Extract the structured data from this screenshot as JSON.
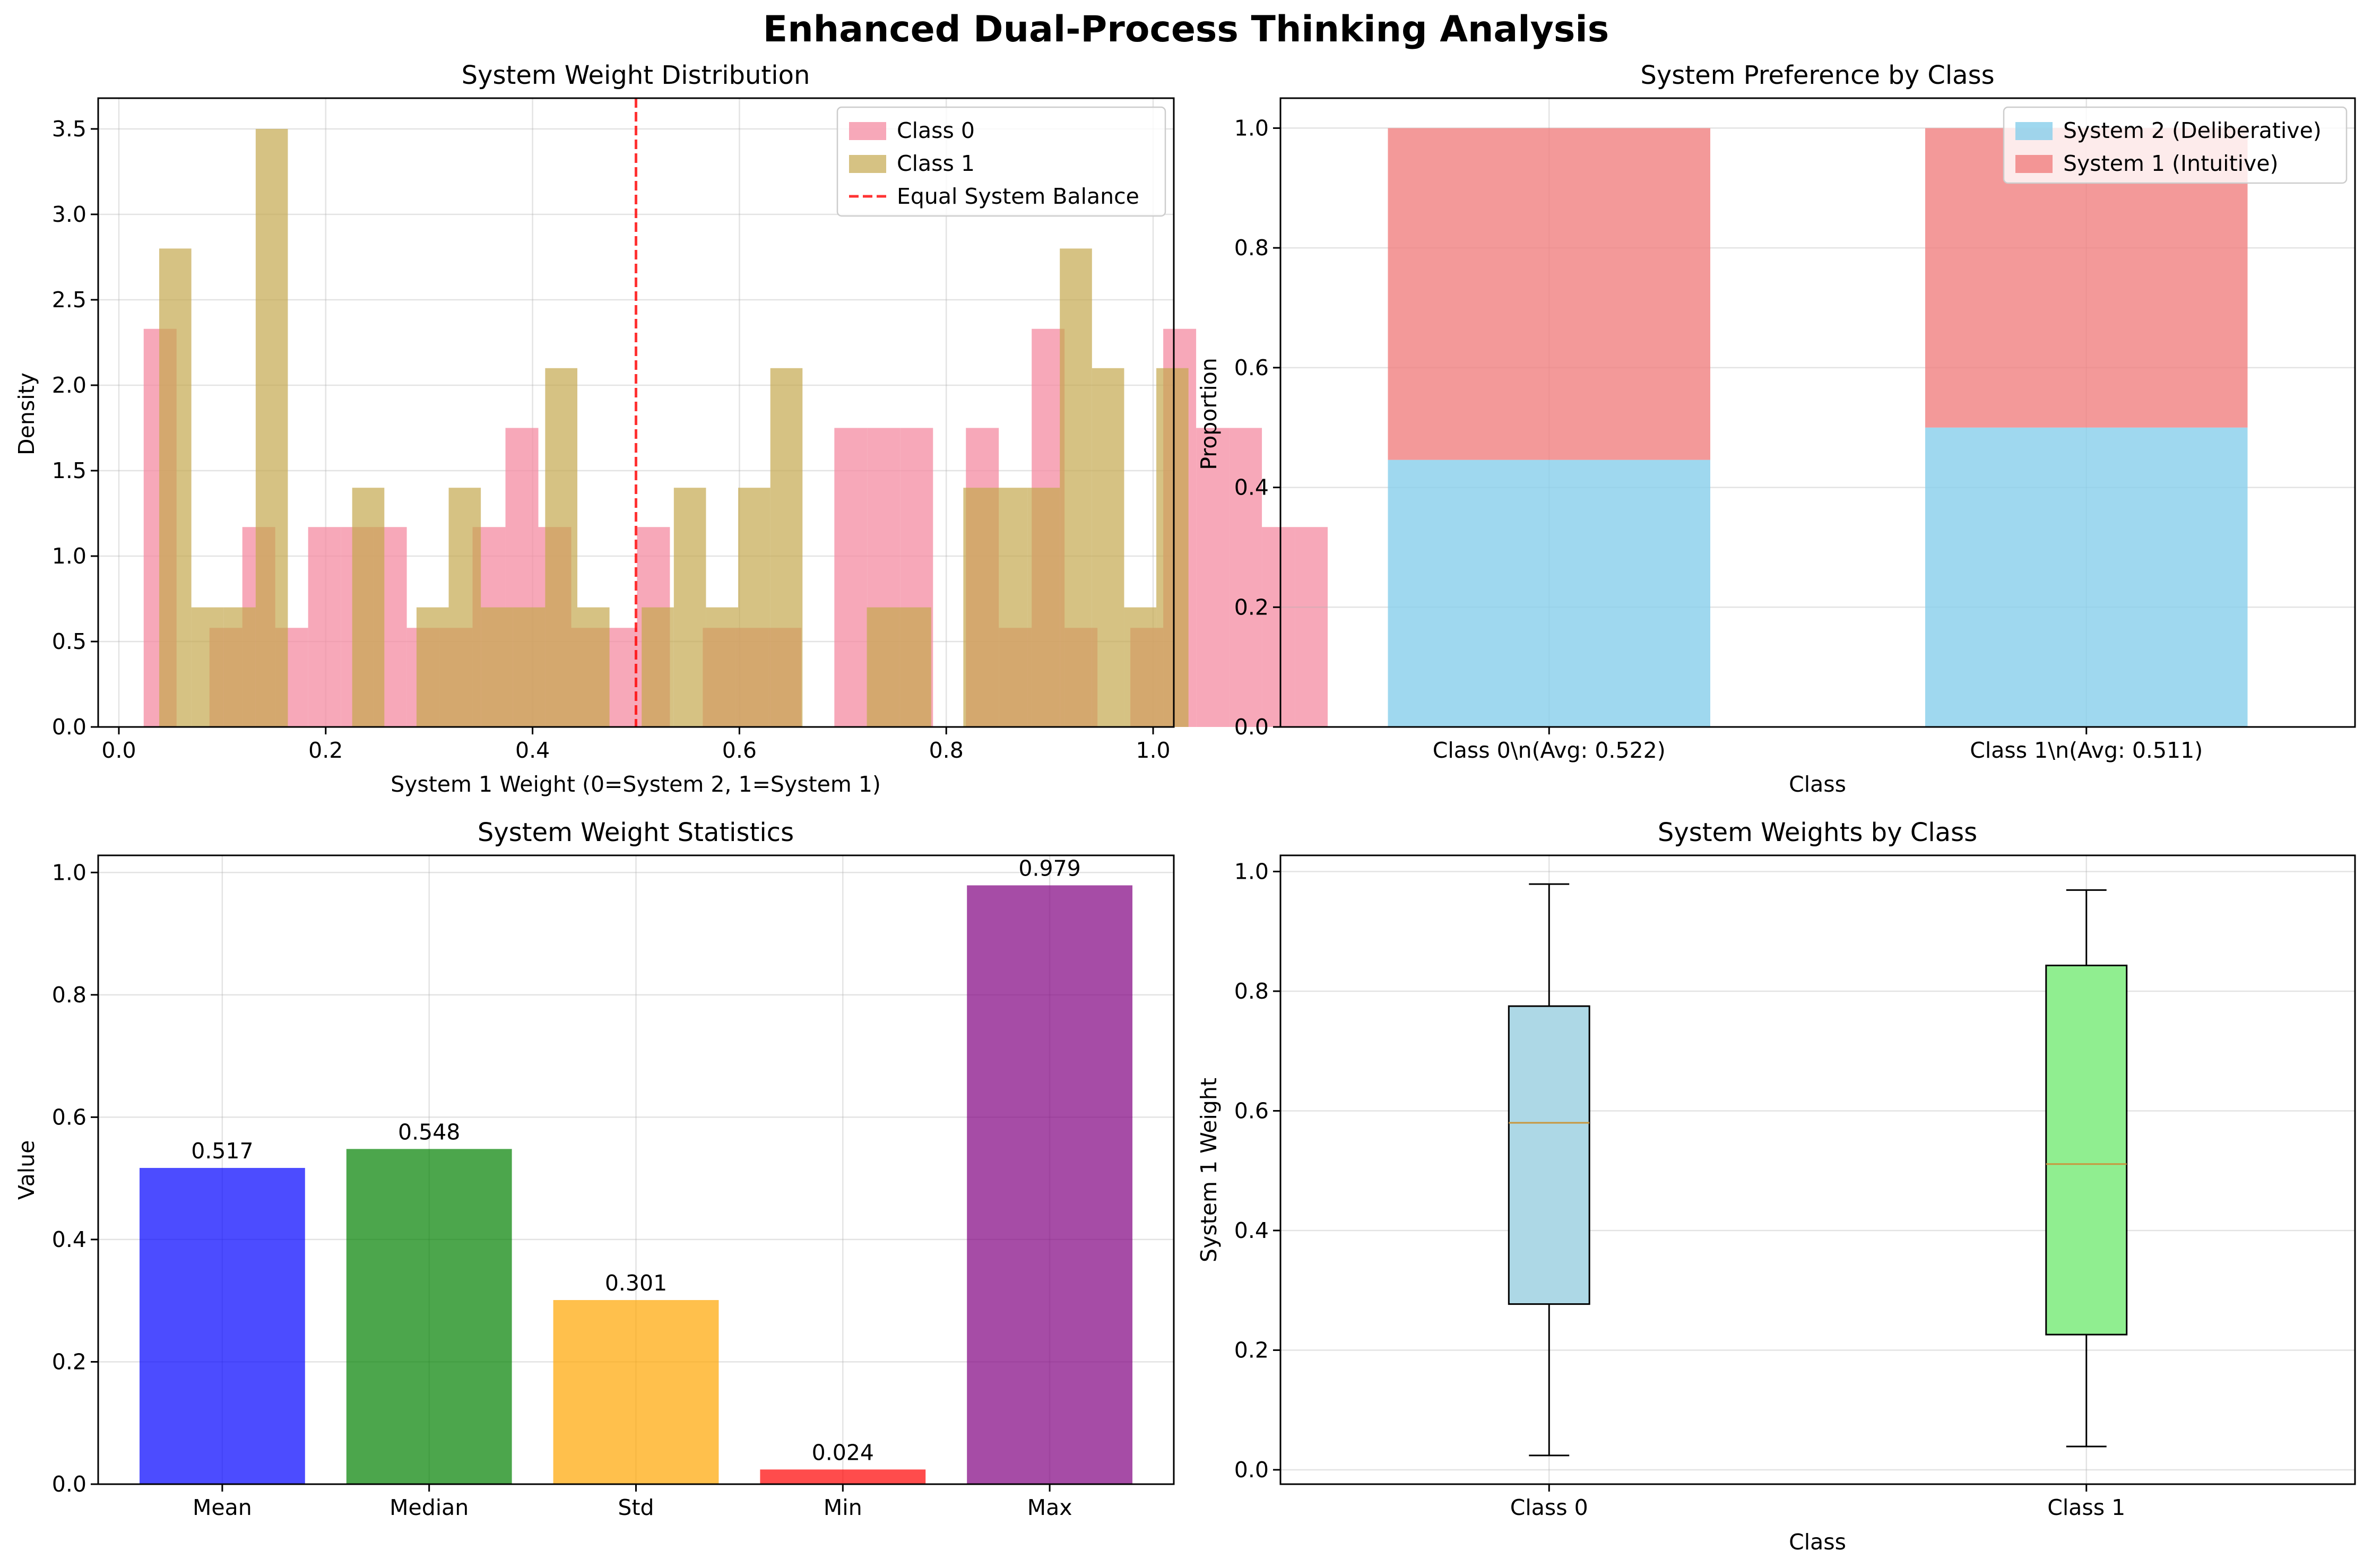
{
  "figure": {
    "title": "Enhanced Dual-Process Thinking Analysis"
  },
  "chart_data": [
    {
      "type": "histogram",
      "title": "System Weight Distribution",
      "xlabel": "System 1 Weight (0=System 2, 1=System 1)",
      "ylabel": "Density",
      "xlim": [
        -0.02,
        1.02
      ],
      "ylim": [
        0,
        3.68
      ],
      "xticks": [
        0.0,
        0.2,
        0.4,
        0.6,
        0.8,
        1.0
      ],
      "xtick_labels": [
        "0.0",
        "0.2",
        "0.4",
        "0.6",
        "0.8",
        "1.0"
      ],
      "yticks": [
        0.0,
        0.5,
        1.0,
        1.5,
        2.0,
        2.5,
        3.0,
        3.5
      ],
      "ytick_labels": [
        "0.0",
        "0.5",
        "1.0",
        "1.5",
        "2.0",
        "2.5",
        "3.0",
        "3.5"
      ],
      "grid": true,
      "legend_position": "upper right",
      "reference_line": {
        "x": 0.5,
        "label": "Equal System Balance",
        "color": "#ff0000",
        "style": "dashed"
      },
      "series": [
        {
          "name": "Class 0",
          "color": "#f48ba1",
          "alpha": 0.75,
          "bin_start": 0.024,
          "bin_width": 0.0318,
          "values": [
            2.33,
            0,
            0.58,
            1.17,
            0.58,
            1.17,
            1.17,
            1.17,
            0.58,
            0.58,
            1.17,
            1.75,
            1.17,
            0.58,
            0.58,
            1.17,
            0,
            0.58,
            0.58,
            0.58,
            0,
            1.75,
            1.75,
            1.75,
            0,
            1.75,
            0.58,
            2.33,
            0.58,
            0,
            0.58,
            2.33,
            1.75,
            1.75,
            1.17,
            1.17
          ]
        },
        {
          "name": "Class 1",
          "color": "#c4a84f",
          "alpha": 0.7,
          "bin_start": 0.039,
          "bin_width": 0.0311,
          "values": [
            2.8,
            0.7,
            0.7,
            3.5,
            0,
            0,
            1.4,
            0,
            0.7,
            1.4,
            0.7,
            0.7,
            2.1,
            0.7,
            0,
            0.7,
            1.4,
            0.7,
            1.4,
            2.1,
            0,
            0,
            0.7,
            0.7,
            0,
            1.4,
            1.4,
            1.4,
            2.8,
            2.1,
            0.7,
            2.1
          ]
        }
      ]
    },
    {
      "type": "bar",
      "stacked": true,
      "title": "System Preference by Class",
      "xlabel": "Class",
      "ylabel": "Proportion",
      "categories": [
        "Class 0\\n(Avg: 0.522)",
        "Class 1\\n(Avg: 0.511)"
      ],
      "ylim": [
        0,
        1.05
      ],
      "yticks": [
        0.0,
        0.2,
        0.4,
        0.6,
        0.8,
        1.0
      ],
      "ytick_labels": [
        "0.0",
        "0.2",
        "0.4",
        "0.6",
        "0.8",
        "1.0"
      ],
      "grid": true,
      "legend_position": "upper right",
      "series": [
        {
          "name": "System 2 (Deliberative)",
          "color": "#87ceeb",
          "alpha": 0.8,
          "values": [
            0.446,
            0.5
          ]
        },
        {
          "name": "System 1 (Intuitive)",
          "color": "#f08080",
          "alpha": 0.8,
          "values": [
            0.554,
            0.5
          ]
        }
      ]
    },
    {
      "type": "bar",
      "title": "System Weight Statistics",
      "xlabel": "",
      "ylabel": "Value",
      "categories": [
        "Mean",
        "Median",
        "Std",
        "Min",
        "Max"
      ],
      "values": [
        0.517,
        0.548,
        0.301,
        0.024,
        0.979
      ],
      "value_labels": [
        "0.517",
        "0.548",
        "0.301",
        "0.024",
        "0.979"
      ],
      "colors": [
        "#0000ff",
        "#008000",
        "#ffa500",
        "#ff0000",
        "#800080"
      ],
      "alpha": 0.7,
      "ylim": [
        0,
        1.028
      ],
      "yticks": [
        0.0,
        0.2,
        0.4,
        0.6,
        0.8,
        1.0
      ],
      "ytick_labels": [
        "0.0",
        "0.2",
        "0.4",
        "0.6",
        "0.8",
        "1.0"
      ],
      "grid": true
    },
    {
      "type": "box",
      "title": "System Weights by Class",
      "xlabel": "Class",
      "ylabel": "System 1 Weight",
      "categories": [
        "Class 0",
        "Class 1"
      ],
      "ylim": [
        -0.024,
        1.027
      ],
      "yticks": [
        0.0,
        0.2,
        0.4,
        0.6,
        0.8,
        1.0
      ],
      "ytick_labels": [
        "0.0",
        "0.2",
        "0.4",
        "0.6",
        "0.8",
        "1.0"
      ],
      "grid": true,
      "boxes": [
        {
          "name": "Class 0",
          "color": "#add8e6",
          "whisker_low": 0.024,
          "q1": 0.277,
          "median": 0.58,
          "q3": 0.775,
          "whisker_high": 0.979
        },
        {
          "name": "Class 1",
          "color": "#90ee90",
          "whisker_low": 0.039,
          "q1": 0.226,
          "median": 0.511,
          "q3": 0.843,
          "whisker_high": 0.969
        }
      ],
      "median_color": "#c8963e"
    }
  ]
}
